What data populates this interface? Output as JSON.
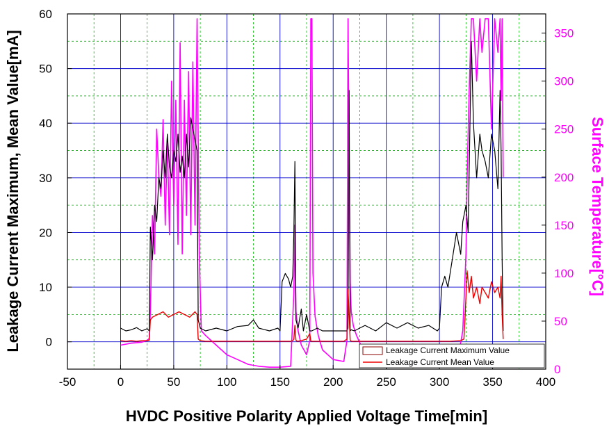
{
  "chart_data": {
    "type": "line",
    "xlabel": "HVDC Positive Polarity Applied Voltage Time[min]",
    "ylabel_left": "Leakage Current Maximum, Mean Value[mA]",
    "ylabel_right": "Surface Temperature[°C]",
    "xlim": [
      -50,
      400
    ],
    "ylim_left": [
      -5,
      60
    ],
    "ylim_right": [
      0,
      370
    ],
    "x_ticks": [
      -50,
      0,
      50,
      100,
      150,
      200,
      250,
      300,
      350,
      400
    ],
    "y_ticks_left": [
      0,
      10,
      20,
      30,
      40,
      50,
      60
    ],
    "y_ticks_right": [
      0,
      50,
      100,
      150,
      200,
      250,
      300,
      350
    ],
    "grid": true,
    "legend_position": "bottom-right",
    "colors": {
      "max_series": "#000000",
      "mean_series": "#ee0000",
      "temperature_series": "#ff00ff",
      "major_grid": "#0000cc",
      "minor_grid": "#00bb00"
    },
    "series": [
      {
        "name": "Leakage Current Maximum Value",
        "axis": "left",
        "x": [
          0,
          5,
          10,
          15,
          20,
          25,
          27,
          28,
          30,
          32,
          34,
          36,
          38,
          40,
          42,
          44,
          46,
          48,
          50,
          52,
          54,
          56,
          58,
          60,
          62,
          64,
          66,
          68,
          70,
          72,
          73,
          75,
          80,
          90,
          100,
          110,
          120,
          125,
          130,
          140,
          148,
          150,
          152,
          155,
          158,
          160,
          162,
          163,
          164,
          165,
          167,
          170,
          172,
          175,
          178,
          180,
          185,
          190,
          200,
          210,
          213,
          214,
          215,
          216,
          217,
          220,
          225,
          230,
          240,
          250,
          260,
          270,
          280,
          290,
          298,
          300,
          302,
          305,
          308,
          312,
          316,
          320,
          322,
          325,
          327,
          330,
          332,
          335,
          338,
          340,
          343,
          346,
          349,
          352,
          355,
          357,
          358,
          359,
          360
        ],
        "values": [
          2.5,
          2.0,
          2.2,
          2.6,
          2.0,
          2.4,
          2.0,
          21,
          15,
          25,
          22,
          30,
          28,
          35,
          30,
          38,
          32,
          30,
          35,
          33,
          38,
          31,
          34,
          30,
          38,
          32,
          41,
          39,
          37,
          35,
          4,
          2.5,
          2.0,
          2.5,
          2.0,
          2.8,
          3.0,
          4.0,
          2.5,
          2.0,
          2.5,
          2.0,
          11,
          12.5,
          11.5,
          10,
          12,
          20,
          33,
          4,
          2.5,
          6,
          2.0,
          5,
          2.0,
          2.0,
          2.5,
          2.0,
          2.0,
          2.0,
          2.0,
          2.5,
          46,
          2.0,
          2.2,
          2.0,
          2.5,
          3.0,
          2.0,
          3.5,
          2.5,
          3.5,
          2.5,
          3.0,
          2.0,
          2.5,
          10,
          12,
          10,
          15,
          20,
          16,
          22,
          25,
          20,
          55,
          40,
          30,
          38,
          35,
          33,
          30,
          38,
          35,
          28,
          46,
          35,
          15,
          2.0
        ]
      },
      {
        "name": "Leakage Current Mean Value",
        "axis": "left",
        "x": [
          0,
          5,
          10,
          15,
          20,
          25,
          27,
          28,
          30,
          35,
          40,
          45,
          50,
          55,
          60,
          65,
          70,
          72,
          73,
          75,
          80,
          100,
          130,
          150,
          160,
          162,
          163,
          164,
          165,
          166,
          170,
          175,
          178,
          179,
          180,
          185,
          200,
          210,
          213,
          214,
          215,
          216,
          217,
          220,
          250,
          280,
          300,
          310,
          320,
          323,
          324,
          326,
          328,
          330,
          332,
          335,
          338,
          340,
          343,
          346,
          349,
          352,
          355,
          357,
          358,
          359,
          360
        ],
        "values": [
          0.2,
          0.1,
          0.2,
          0.1,
          0.2,
          0.2,
          0.3,
          4.0,
          4.5,
          5.0,
          5.5,
          4.5,
          5.0,
          5.5,
          5.0,
          4.5,
          5.5,
          5.0,
          0.5,
          0.2,
          0.1,
          0.1,
          0.1,
          0.1,
          0.1,
          0.2,
          0.5,
          3.0,
          0.3,
          0.1,
          0.2,
          0.5,
          1.5,
          0.1,
          0.1,
          0.1,
          0.1,
          0.1,
          0.5,
          9.5,
          5.0,
          0.3,
          0.1,
          0.1,
          0.1,
          0.1,
          0.1,
          0.1,
          0.2,
          0.5,
          4.0,
          13.0,
          9.0,
          12.0,
          8.0,
          10.0,
          7.0,
          10.0,
          9.0,
          8.0,
          11.0,
          9.0,
          10.0,
          8.0,
          12.0,
          5.0,
          0.5
        ]
      },
      {
        "name": "Surface Temperature",
        "axis": "right",
        "x": [
          0,
          10,
          20,
          25,
          27,
          28,
          30,
          32,
          34,
          36,
          38,
          40,
          42,
          44,
          46,
          48,
          50,
          52,
          54,
          56,
          58,
          60,
          62,
          64,
          66,
          68,
          70,
          72,
          74,
          76,
          80,
          90,
          100,
          110,
          120,
          130,
          140,
          150,
          160,
          163,
          164,
          165,
          167,
          170,
          175,
          178,
          179,
          180,
          181,
          183,
          186,
          190,
          200,
          210,
          213,
          214,
          215,
          216,
          217,
          219,
          222,
          226,
          230,
          240,
          260,
          280,
          300,
          310,
          318,
          322,
          325,
          326,
          328,
          330,
          332,
          335,
          338,
          340,
          343,
          346,
          349,
          352,
          355,
          357,
          358,
          359,
          360
        ],
        "values": [
          25,
          27,
          28,
          30,
          32,
          60,
          160,
          120,
          250,
          200,
          180,
          260,
          150,
          240,
          140,
          300,
          170,
          280,
          130,
          340,
          120,
          280,
          160,
          310,
          140,
          320,
          150,
          365,
          120,
          40,
          35,
          25,
          15,
          10,
          5,
          3,
          2,
          2,
          3,
          80,
          150,
          60,
          40,
          25,
          15,
          30,
          365,
          365,
          100,
          55,
          35,
          20,
          10,
          8,
          30,
          365,
          220,
          90,
          60,
          45,
          35,
          25,
          15,
          10,
          7,
          5,
          5,
          8,
          15,
          40,
          120,
          200,
          290,
          365,
          365,
          300,
          365,
          330,
          365,
          365,
          250,
          365,
          330,
          365,
          280,
          365,
          200
        ]
      }
    ]
  }
}
